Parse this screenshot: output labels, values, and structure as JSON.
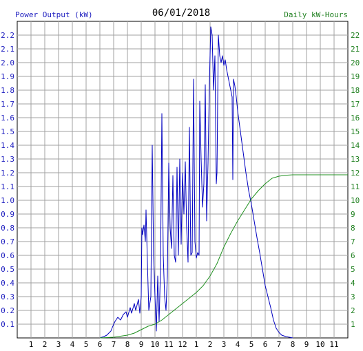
{
  "chart_data": {
    "type": "line",
    "title": "06/01/2018",
    "left_axis_label": "Power Output (kW)",
    "right_axis_label": "Daily kW-Hours",
    "x_tick_labels": [
      "1",
      "2",
      "3",
      "4",
      "5",
      "6",
      "7",
      "8",
      "9",
      "10",
      "11",
      "12",
      "1",
      "2",
      "3",
      "4",
      "5",
      "6",
      "7",
      "8",
      "9",
      "10",
      "11"
    ],
    "y_left_ticks": [
      "0.1",
      "0.2",
      "0.3",
      "0.4",
      "0.5",
      "0.6",
      "0.7",
      "0.8",
      "0.9",
      "1.0",
      "1.1",
      "1.2",
      "1.3",
      "1.4",
      "1.5",
      "1.6",
      "1.7",
      "1.8",
      "1.9",
      "2.0",
      "2.1",
      "2.2"
    ],
    "y_right_ticks": [
      "1",
      "2",
      "3",
      "4",
      "5",
      "6",
      "7",
      "8",
      "9",
      "10",
      "11",
      "12",
      "13",
      "14",
      "15",
      "16",
      "17",
      "18",
      "19",
      "20",
      "21",
      "22"
    ],
    "x_range_hours": [
      0,
      24
    ],
    "y_left_range": [
      0,
      2.3
    ],
    "y_right_range": [
      0,
      23
    ],
    "grid": true,
    "colors": {
      "power": "#0000c0",
      "energy": "#209020",
      "grid": "#a0a0a0",
      "left_axis": "#2020c0",
      "right_axis": "#208020"
    },
    "series": [
      {
        "name": "Power Output (kW)",
        "axis": "left",
        "points": [
          [
            6.0,
            0.0
          ],
          [
            6.3,
            0.01
          ],
          [
            6.5,
            0.02
          ],
          [
            6.8,
            0.05
          ],
          [
            7.0,
            0.1
          ],
          [
            7.1,
            0.12
          ],
          [
            7.3,
            0.15
          ],
          [
            7.5,
            0.13
          ],
          [
            7.7,
            0.17
          ],
          [
            7.9,
            0.19
          ],
          [
            8.0,
            0.15
          ],
          [
            8.2,
            0.22
          ],
          [
            8.3,
            0.18
          ],
          [
            8.5,
            0.25
          ],
          [
            8.6,
            0.2
          ],
          [
            8.8,
            0.28
          ],
          [
            8.9,
            0.18
          ],
          [
            9.0,
            0.3
          ],
          [
            9.05,
            0.8
          ],
          [
            9.1,
            0.75
          ],
          [
            9.2,
            0.82
          ],
          [
            9.3,
            0.7
          ],
          [
            9.35,
            0.93
          ],
          [
            9.45,
            0.55
          ],
          [
            9.55,
            0.2
          ],
          [
            9.7,
            0.3
          ],
          [
            9.8,
            1.4
          ],
          [
            9.9,
            0.6
          ],
          [
            10.0,
            0.3
          ],
          [
            10.1,
            0.05
          ],
          [
            10.2,
            0.45
          ],
          [
            10.3,
            0.12
          ],
          [
            10.4,
            0.5
          ],
          [
            10.5,
            1.63
          ],
          [
            10.6,
            0.6
          ],
          [
            10.7,
            0.3
          ],
          [
            10.8,
            0.2
          ],
          [
            10.9,
            0.45
          ],
          [
            11.0,
            1.27
          ],
          [
            11.1,
            0.8
          ],
          [
            11.2,
            0.65
          ],
          [
            11.3,
            1.18
          ],
          [
            11.4,
            0.6
          ],
          [
            11.5,
            0.55
          ],
          [
            11.6,
            1.24
          ],
          [
            11.7,
            0.6
          ],
          [
            11.8,
            1.3
          ],
          [
            11.9,
            0.68
          ],
          [
            12.0,
            1.2
          ],
          [
            12.1,
            0.9
          ],
          [
            12.2,
            1.28
          ],
          [
            12.3,
            0.8
          ],
          [
            12.4,
            0.55
          ],
          [
            12.5,
            1.53
          ],
          [
            12.6,
            0.6
          ],
          [
            12.7,
            0.62
          ],
          [
            12.8,
            1.88
          ],
          [
            12.9,
            0.7
          ],
          [
            13.0,
            0.58
          ],
          [
            13.1,
            0.62
          ],
          [
            13.2,
            0.6
          ],
          [
            13.25,
            1.72
          ],
          [
            13.35,
            1.3
          ],
          [
            13.45,
            0.95
          ],
          [
            13.55,
            1.12
          ],
          [
            13.65,
            1.84
          ],
          [
            13.75,
            0.85
          ],
          [
            13.85,
            1.27
          ],
          [
            13.95,
            1.85
          ],
          [
            14.05,
            2.26
          ],
          [
            14.15,
            2.2
          ],
          [
            14.25,
            1.8
          ],
          [
            14.35,
            2.05
          ],
          [
            14.45,
            1.12
          ],
          [
            14.5,
            1.2
          ],
          [
            14.6,
            2.2
          ],
          [
            14.7,
            2.05
          ],
          [
            14.8,
            2.0
          ],
          [
            14.9,
            2.05
          ],
          [
            15.0,
            1.98
          ],
          [
            15.1,
            2.02
          ],
          [
            15.2,
            1.95
          ],
          [
            15.3,
            1.9
          ],
          [
            15.4,
            1.85
          ],
          [
            15.5,
            1.8
          ],
          [
            15.6,
            1.75
          ],
          [
            15.65,
            1.15
          ],
          [
            15.7,
            1.88
          ],
          [
            15.8,
            1.83
          ],
          [
            15.9,
            1.75
          ],
          [
            16.0,
            1.65
          ],
          [
            16.2,
            1.5
          ],
          [
            16.4,
            1.35
          ],
          [
            16.6,
            1.2
          ],
          [
            16.8,
            1.07
          ],
          [
            17.0,
            0.97
          ],
          [
            17.2,
            0.85
          ],
          [
            17.4,
            0.73
          ],
          [
            17.6,
            0.62
          ],
          [
            17.8,
            0.5
          ],
          [
            18.0,
            0.38
          ],
          [
            18.2,
            0.3
          ],
          [
            18.4,
            0.22
          ],
          [
            18.6,
            0.13
          ],
          [
            18.8,
            0.07
          ],
          [
            19.0,
            0.04
          ],
          [
            19.2,
            0.02
          ],
          [
            19.5,
            0.01
          ],
          [
            20.0,
            0.0
          ]
        ]
      },
      {
        "name": "Daily kW-Hours",
        "axis": "right",
        "points": [
          [
            6.0,
            0.0
          ],
          [
            7.0,
            0.05
          ],
          [
            8.0,
            0.2
          ],
          [
            8.5,
            0.35
          ],
          [
            9.0,
            0.6
          ],
          [
            9.5,
            0.85
          ],
          [
            10.0,
            1.0
          ],
          [
            10.5,
            1.3
          ],
          [
            11.0,
            1.7
          ],
          [
            11.5,
            2.1
          ],
          [
            12.0,
            2.5
          ],
          [
            12.5,
            2.9
          ],
          [
            13.0,
            3.3
          ],
          [
            13.5,
            3.8
          ],
          [
            14.0,
            4.5
          ],
          [
            14.5,
            5.4
          ],
          [
            15.0,
            6.6
          ],
          [
            15.5,
            7.6
          ],
          [
            16.0,
            8.5
          ],
          [
            16.5,
            9.3
          ],
          [
            17.0,
            10.1
          ],
          [
            17.5,
            10.7
          ],
          [
            18.0,
            11.2
          ],
          [
            18.5,
            11.6
          ],
          [
            19.0,
            11.75
          ],
          [
            19.5,
            11.82
          ],
          [
            20.0,
            11.85
          ],
          [
            22.0,
            11.85
          ],
          [
            24.0,
            11.85
          ]
        ]
      }
    ]
  }
}
